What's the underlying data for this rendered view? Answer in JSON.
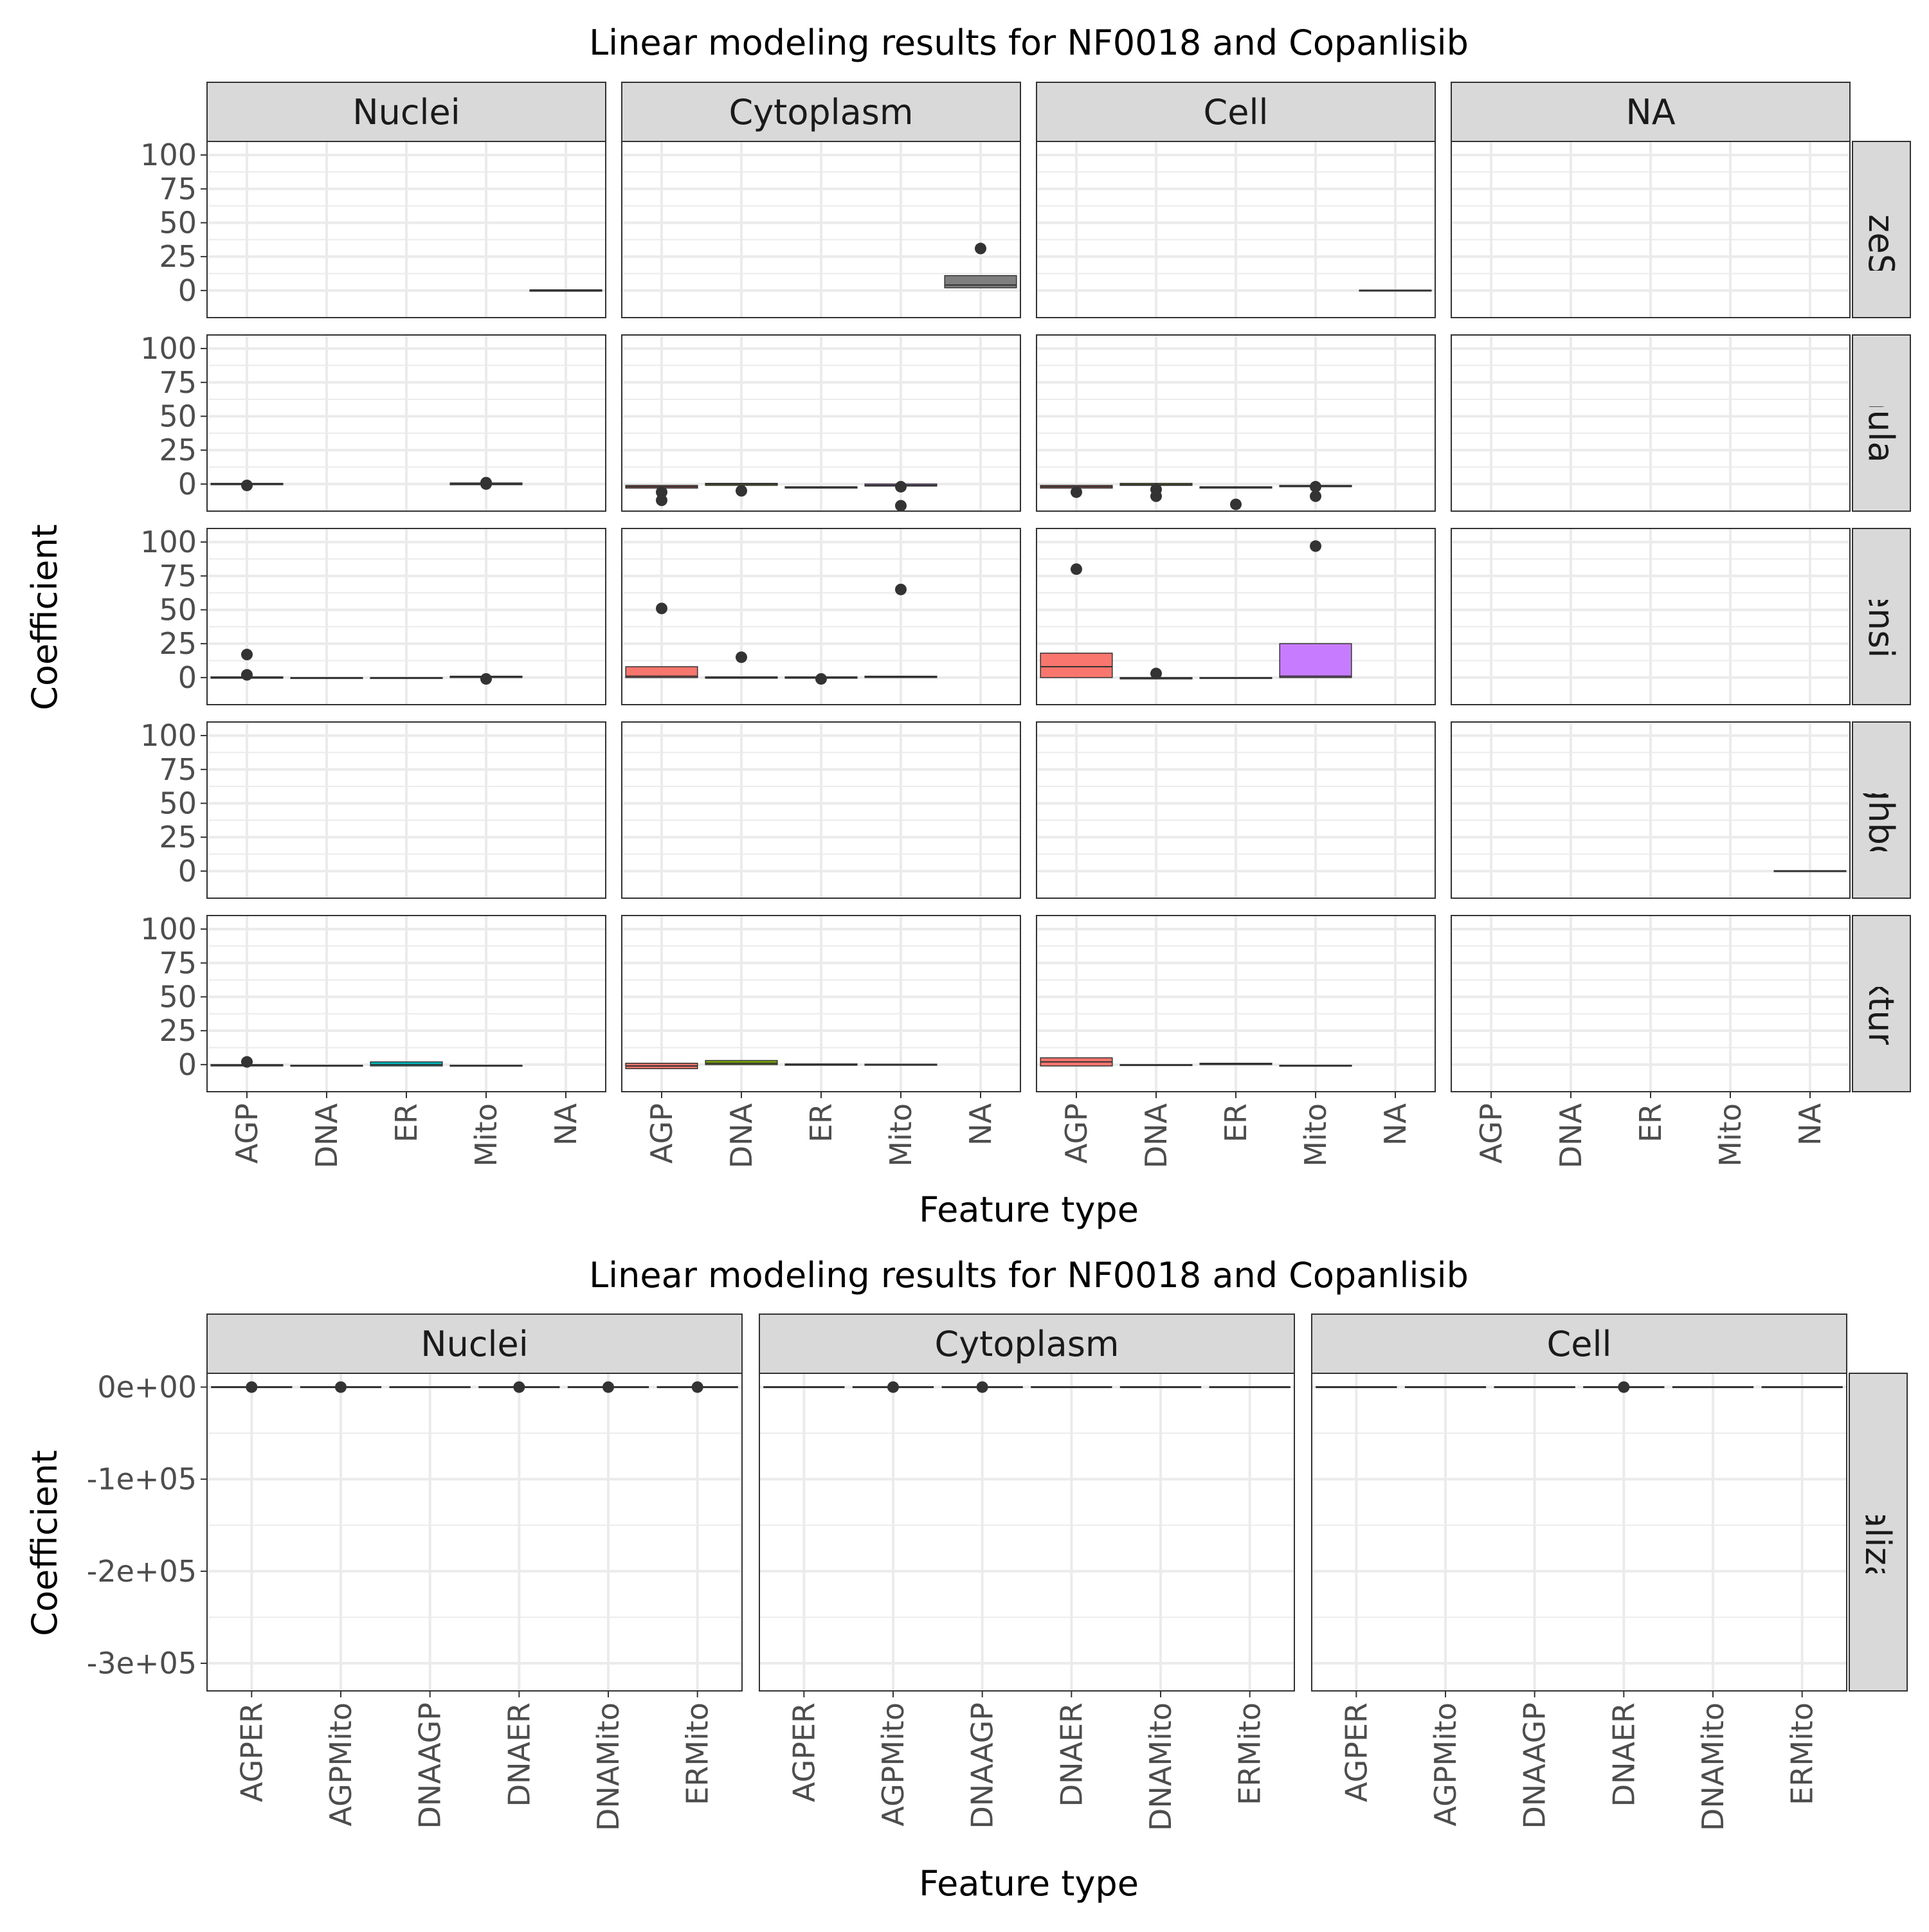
{
  "charts": [
    {
      "title": "Linear modeling results for NF0018 and Copanlisib",
      "xlabel": "Feature type",
      "ylabel": "Coefficient",
      "col_strips": [
        "Nuclei",
        "Cytoplasm",
        "Cell",
        "NA"
      ],
      "row_strips": [
        "AreaSizeShape",
        "Granularity",
        "Intensity",
        "Neighbors",
        "Texture"
      ],
      "row_strips_visible": [
        "eaSizeSha",
        "Granularity",
        "Intensity",
        "Neighbors",
        "Texture"
      ],
      "x_categories": [
        "AGP",
        "DNA",
        "ER",
        "Mito",
        "NA"
      ],
      "y_ticks": [
        0,
        25,
        50,
        75,
        100
      ],
      "y_tick_labels": [
        "0",
        "25",
        "50",
        "75",
        "100"
      ]
    },
    {
      "title": "Linear modeling results for NF0018 and Copanlisib",
      "xlabel": "Feature type",
      "ylabel": "Coefficient",
      "col_strips": [
        "Nuclei",
        "Cytoplasm",
        "Cell"
      ],
      "row_strips": [
        "Colocalization"
      ],
      "x_categories": [
        "AGPER",
        "AGPMito",
        "DNAAGP",
        "DNAER",
        "DNAMito",
        "ERMito"
      ],
      "y_ticks": [
        0,
        -100000,
        -200000,
        -300000
      ],
      "y_tick_labels": [
        "0e+00",
        "-1e+05",
        "-2e+05",
        "-3e+05"
      ]
    }
  ],
  "colors": {
    "AGP": "#F8766D",
    "DNA": "#7CAE00",
    "ER": "#00BFC4",
    "Mito": "#C77CFF",
    "NA": "#7F7F7F",
    "strip_fill": "#d9d9d9",
    "panel_border": "#333333",
    "grid": "#ebebeb",
    "outlier": "#333333"
  },
  "chart_data": [
    {
      "type": "box",
      "title": "Linear modeling results for NF0018 and Copanlisib",
      "xlabel": "Feature type",
      "ylabel": "Coefficient",
      "ylim": [
        -20,
        110
      ],
      "facet_cols": [
        "Nuclei",
        "Cytoplasm",
        "Cell",
        "NA"
      ],
      "facet_rows": [
        "AreaSizeShape",
        "Granularity",
        "Intensity",
        "Neighbors",
        "Texture"
      ],
      "categories": [
        "AGP",
        "DNA",
        "ER",
        "Mito",
        "NA"
      ],
      "boxes": [
        {
          "row": 0,
          "col": 0,
          "cat": "NA",
          "q1": -0.5,
          "median": 0,
          "q3": 0.5,
          "outliers": []
        },
        {
          "row": 0,
          "col": 1,
          "cat": "NA",
          "q1": 2,
          "median": 4,
          "q3": 11,
          "outliers": [
            31
          ]
        },
        {
          "row": 0,
          "col": 2,
          "cat": "NA",
          "q1": -0.3,
          "median": 0,
          "q3": 0.3,
          "outliers": []
        },
        {
          "row": 1,
          "col": 0,
          "cat": "AGP",
          "q1": -0.5,
          "median": 0,
          "q3": 0.5,
          "outliers": [
            -1
          ]
        },
        {
          "row": 1,
          "col": 0,
          "cat": "Mito",
          "q1": -0.5,
          "median": 0,
          "q3": 0.8,
          "outliers": [
            1,
            0
          ]
        },
        {
          "row": 1,
          "col": 1,
          "cat": "AGP",
          "q1": -3,
          "median": -2,
          "q3": -1,
          "outliers": [
            -6,
            -12
          ]
        },
        {
          "row": 1,
          "col": 1,
          "cat": "DNA",
          "q1": -1,
          "median": 0,
          "q3": 0.5,
          "outliers": [
            -5
          ]
        },
        {
          "row": 1,
          "col": 1,
          "cat": "ER",
          "q1": -3,
          "median": -2.5,
          "q3": -2,
          "outliers": []
        },
        {
          "row": 1,
          "col": 1,
          "cat": "Mito",
          "q1": -1.5,
          "median": -1,
          "q3": 0,
          "outliers": [
            -2,
            -16
          ]
        },
        {
          "row": 1,
          "col": 2,
          "cat": "AGP",
          "q1": -3,
          "median": -2,
          "q3": -1,
          "outliers": [
            -6
          ]
        },
        {
          "row": 1,
          "col": 2,
          "cat": "DNA",
          "q1": -1,
          "median": -0.5,
          "q3": 0.5,
          "outliers": [
            -4,
            -9
          ]
        },
        {
          "row": 1,
          "col": 2,
          "cat": "ER",
          "q1": -3,
          "median": -2.5,
          "q3": -2,
          "outliers": [
            -15
          ]
        },
        {
          "row": 1,
          "col": 2,
          "cat": "Mito",
          "q1": -2,
          "median": -1.5,
          "q3": -1,
          "outliers": [
            -2,
            -9
          ]
        },
        {
          "row": 2,
          "col": 0,
          "cat": "AGP",
          "q1": -0.5,
          "median": 0,
          "q3": 0.5,
          "outliers": [
            17,
            2
          ]
        },
        {
          "row": 2,
          "col": 0,
          "cat": "DNA",
          "q1": -0.5,
          "median": -0.2,
          "q3": 0,
          "outliers": []
        },
        {
          "row": 2,
          "col": 0,
          "cat": "ER",
          "q1": -0.5,
          "median": -0.2,
          "q3": 0,
          "outliers": []
        },
        {
          "row": 2,
          "col": 0,
          "cat": "Mito",
          "q1": 0,
          "median": 0.5,
          "q3": 1,
          "outliers": [
            -1
          ]
        },
        {
          "row": 2,
          "col": 1,
          "cat": "AGP",
          "q1": 0,
          "median": 1,
          "q3": 8,
          "outliers": [
            51
          ]
        },
        {
          "row": 2,
          "col": 1,
          "cat": "DNA",
          "q1": -0.5,
          "median": 0,
          "q3": 0.5,
          "outliers": [
            15
          ]
        },
        {
          "row": 2,
          "col": 1,
          "cat": "ER",
          "q1": -0.5,
          "median": 0,
          "q3": 0.5,
          "outliers": [
            -1
          ]
        },
        {
          "row": 2,
          "col": 1,
          "cat": "Mito",
          "q1": 0,
          "median": 0.5,
          "q3": 1,
          "outliers": [
            65
          ]
        },
        {
          "row": 2,
          "col": 2,
          "cat": "AGP",
          "q1": 0,
          "median": 8,
          "q3": 18,
          "outliers": [
            80
          ]
        },
        {
          "row": 2,
          "col": 2,
          "cat": "DNA",
          "q1": -1,
          "median": -0.5,
          "q3": 0,
          "outliers": [
            3
          ]
        },
        {
          "row": 2,
          "col": 2,
          "cat": "ER",
          "q1": -0.5,
          "median": -0.2,
          "q3": 0,
          "outliers": []
        },
        {
          "row": 2,
          "col": 2,
          "cat": "Mito",
          "q1": 0,
          "median": 1,
          "q3": 25,
          "outliers": [
            97
          ]
        },
        {
          "row": 3,
          "col": 3,
          "cat": "NA",
          "q1": -0.3,
          "median": 0,
          "q3": 0.3,
          "outliers": []
        },
        {
          "row": 4,
          "col": 0,
          "cat": "AGP",
          "q1": -1,
          "median": -0.5,
          "q3": 0,
          "outliers": [
            2
          ]
        },
        {
          "row": 4,
          "col": 0,
          "cat": "DNA",
          "q1": -1,
          "median": -0.7,
          "q3": -0.5,
          "outliers": []
        },
        {
          "row": 4,
          "col": 0,
          "cat": "ER",
          "q1": -1,
          "median": 0,
          "q3": 2,
          "outliers": []
        },
        {
          "row": 4,
          "col": 0,
          "cat": "Mito",
          "q1": -1,
          "median": -0.7,
          "q3": -0.5,
          "outliers": []
        },
        {
          "row": 4,
          "col": 1,
          "cat": "AGP",
          "q1": -3,
          "median": -1,
          "q3": 1,
          "outliers": []
        },
        {
          "row": 4,
          "col": 1,
          "cat": "DNA",
          "q1": 0,
          "median": 1,
          "q3": 3,
          "outliers": []
        },
        {
          "row": 4,
          "col": 1,
          "cat": "ER",
          "q1": -0.5,
          "median": 0,
          "q3": 0.5,
          "outliers": []
        },
        {
          "row": 4,
          "col": 1,
          "cat": "Mito",
          "q1": -0.5,
          "median": 0,
          "q3": 0.3,
          "outliers": []
        },
        {
          "row": 4,
          "col": 2,
          "cat": "AGP",
          "q1": -1,
          "median": 2,
          "q3": 5,
          "outliers": []
        },
        {
          "row": 4,
          "col": 2,
          "cat": "DNA",
          "q1": -0.5,
          "median": -0.2,
          "q3": 0,
          "outliers": []
        },
        {
          "row": 4,
          "col": 2,
          "cat": "ER",
          "q1": 0,
          "median": 0.5,
          "q3": 1,
          "outliers": []
        },
        {
          "row": 4,
          "col": 2,
          "cat": "Mito",
          "q1": -1,
          "median": -0.7,
          "q3": -0.5,
          "outliers": []
        }
      ]
    },
    {
      "type": "box",
      "title": "Linear modeling results for NF0018 and Copanlisib",
      "xlabel": "Feature type",
      "ylabel": "Coefficient",
      "ylim": [
        -330000,
        15000
      ],
      "facet_cols": [
        "Nuclei",
        "Cytoplasm",
        "Cell"
      ],
      "facet_rows": [
        "Colocalization"
      ],
      "categories": [
        "AGPER",
        "AGPMito",
        "DNAAGP",
        "DNAER",
        "DNAMito",
        "ERMito"
      ],
      "boxes": [
        {
          "col": 0,
          "cat": "AGPER",
          "q1": -500,
          "median": 0,
          "q3": 500,
          "outliers": [
            0
          ]
        },
        {
          "col": 0,
          "cat": "AGPMito",
          "q1": -500,
          "median": 0,
          "q3": 500,
          "outliers": [
            0
          ]
        },
        {
          "col": 0,
          "cat": "DNAAGP",
          "q1": -500,
          "median": 0,
          "q3": 500,
          "outliers": []
        },
        {
          "col": 0,
          "cat": "DNAER",
          "q1": -500,
          "median": 0,
          "q3": 500,
          "outliers": [
            0
          ]
        },
        {
          "col": 0,
          "cat": "DNAMito",
          "q1": -500,
          "median": 0,
          "q3": 500,
          "outliers": [
            0
          ]
        },
        {
          "col": 0,
          "cat": "ERMito",
          "q1": -500,
          "median": 0,
          "q3": 500,
          "outliers": [
            0
          ]
        },
        {
          "col": 1,
          "cat": "AGPER",
          "q1": -500,
          "median": 0,
          "q3": 500,
          "outliers": []
        },
        {
          "col": 1,
          "cat": "AGPMito",
          "q1": -500,
          "median": 0,
          "q3": 500,
          "outliers": [
            0
          ]
        },
        {
          "col": 1,
          "cat": "DNAAGP",
          "q1": -500,
          "median": 0,
          "q3": 500,
          "outliers": [
            0
          ]
        },
        {
          "col": 1,
          "cat": "DNAER",
          "q1": -500,
          "median": 0,
          "q3": 500,
          "outliers": []
        },
        {
          "col": 1,
          "cat": "DNAMito",
          "q1": -500,
          "median": 0,
          "q3": 500,
          "outliers": []
        },
        {
          "col": 1,
          "cat": "ERMito",
          "q1": -500,
          "median": 0,
          "q3": 500,
          "outliers": []
        },
        {
          "col": 2,
          "cat": "AGPER",
          "q1": -500,
          "median": 0,
          "q3": 500,
          "outliers": []
        },
        {
          "col": 2,
          "cat": "AGPMito",
          "q1": -500,
          "median": 0,
          "q3": 500,
          "outliers": []
        },
        {
          "col": 2,
          "cat": "DNAAGP",
          "q1": -500,
          "median": 0,
          "q3": 500,
          "outliers": []
        },
        {
          "col": 2,
          "cat": "DNAER",
          "q1": -500,
          "median": 0,
          "q3": 500,
          "outliers": [
            0
          ]
        },
        {
          "col": 2,
          "cat": "DNAMito",
          "q1": -500,
          "median": 0,
          "q3": 500,
          "outliers": []
        },
        {
          "col": 2,
          "cat": "ERMito",
          "q1": -500,
          "median": 0,
          "q3": 500,
          "outliers": []
        }
      ]
    }
  ]
}
